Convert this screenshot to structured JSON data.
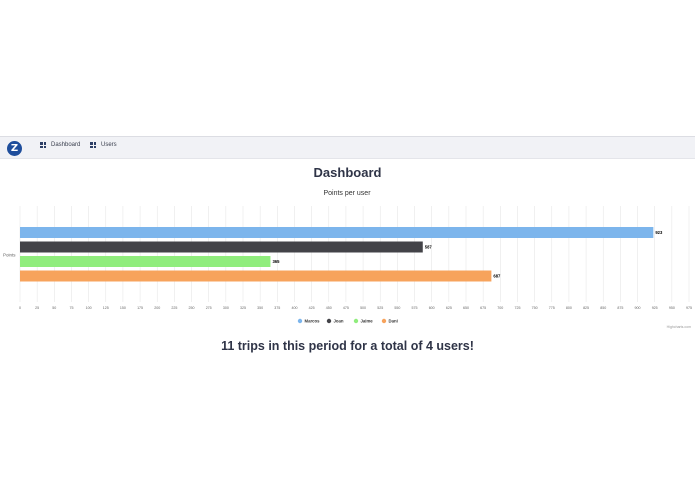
{
  "nav": {
    "logo_letter": "Z",
    "items": [
      {
        "label": "Dashboard",
        "icon": "grid-icon"
      },
      {
        "label": "Users",
        "icon": "grid-icon"
      }
    ]
  },
  "page": {
    "title": "Dashboard",
    "summary": "11 trips in this period for a total of 4 users!"
  },
  "chart_data": {
    "type": "bar",
    "orientation": "horizontal",
    "title": "Points per user",
    "category_label": "Points",
    "credit": "Highcharts.com",
    "xlim": [
      0,
      975
    ],
    "tick_step": 25,
    "grid": true,
    "legend_position": "bottom-center",
    "series": [
      {
        "name": "Marcos",
        "value": 923,
        "color": "#7cb5ec"
      },
      {
        "name": "Joan",
        "value": 587,
        "color": "#434348"
      },
      {
        "name": "Jaime",
        "value": 365,
        "color": "#90ed7d"
      },
      {
        "name": "Dani",
        "value": 687,
        "color": "#f7a35c"
      }
    ]
  }
}
